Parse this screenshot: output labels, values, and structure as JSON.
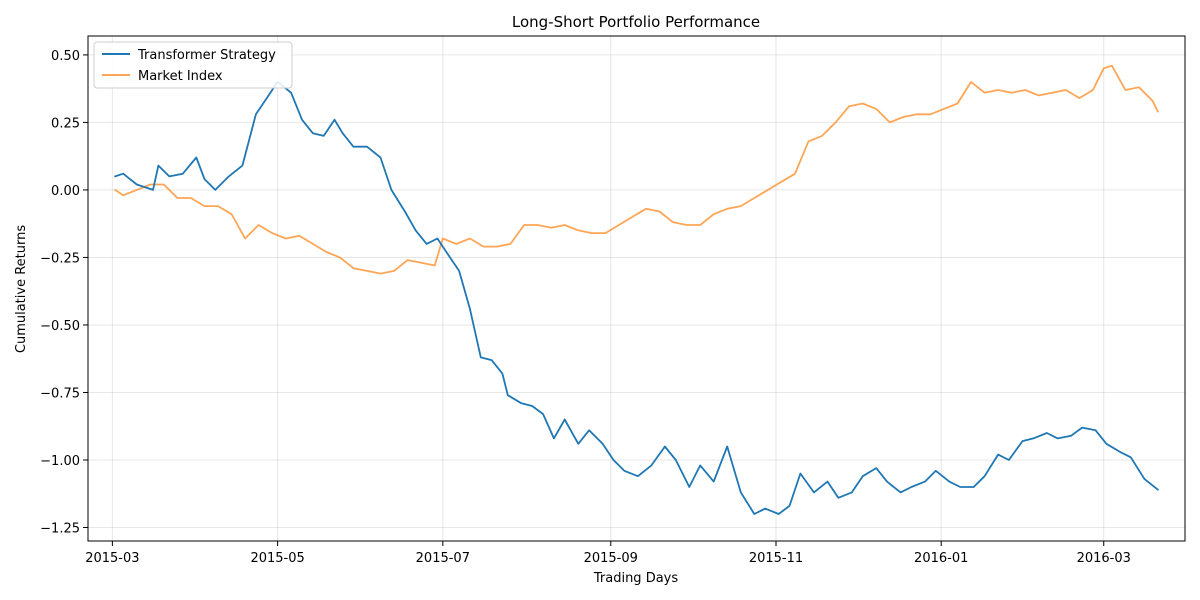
{
  "chart_data": {
    "type": "line",
    "title": "Long-Short Portfolio Performance",
    "xlabel": "Trading Days",
    "ylabel": "Cumulative Returns",
    "grid": true,
    "legend_position": "top-left",
    "x_axis": {
      "start_date": "2015-03-02",
      "end_date": "2016-03-21",
      "ticks": [
        "2015-03",
        "2015-05",
        "2015-07",
        "2015-09",
        "2015-11",
        "2016-01",
        "2016-03"
      ]
    },
    "y_axis": {
      "ylim": [
        -1.3,
        0.57
      ],
      "ticks": [
        0.5,
        0.25,
        0.0,
        -0.25,
        -0.5,
        -0.75,
        -1.0,
        -1.25
      ],
      "tick_labels": [
        "0.50",
        "0.25",
        "0.00",
        "−0.25",
        "−0.50",
        "−0.75",
        "−1.00",
        "−1.25"
      ]
    },
    "series": [
      {
        "name": "Transformer Strategy",
        "color": "#1f77b4",
        "dates": [
          "2015-03-02",
          "2015-03-05",
          "2015-03-10",
          "2015-03-16",
          "2015-03-18",
          "2015-03-22",
          "2015-03-27",
          "2015-04-01",
          "2015-04-04",
          "2015-04-08",
          "2015-04-13",
          "2015-04-18",
          "2015-04-23",
          "2015-04-27",
          "2015-05-01",
          "2015-05-06",
          "2015-05-10",
          "2015-05-14",
          "2015-05-18",
          "2015-05-22",
          "2015-05-25",
          "2015-05-29",
          "2015-06-03",
          "2015-06-08",
          "2015-06-12",
          "2015-06-17",
          "2015-06-21",
          "2015-06-25",
          "2015-06-29",
          "2015-07-03",
          "2015-07-07",
          "2015-07-11",
          "2015-07-15",
          "2015-07-19",
          "2015-07-23",
          "2015-07-25",
          "2015-07-30",
          "2015-08-03",
          "2015-08-07",
          "2015-08-11",
          "2015-08-15",
          "2015-08-20",
          "2015-08-24",
          "2015-08-29",
          "2015-09-02",
          "2015-09-06",
          "2015-09-11",
          "2015-09-16",
          "2015-09-21",
          "2015-09-25",
          "2015-09-30",
          "2015-10-04",
          "2015-10-09",
          "2015-10-14",
          "2015-10-19",
          "2015-10-24",
          "2015-10-28",
          "2015-11-02",
          "2015-11-06",
          "2015-11-10",
          "2015-11-15",
          "2015-11-20",
          "2015-11-24",
          "2015-11-29",
          "2015-12-03",
          "2015-12-08",
          "2015-12-12",
          "2015-12-17",
          "2015-12-21",
          "2015-12-26",
          "2015-12-30",
          "2016-01-04",
          "2016-01-08",
          "2016-01-13",
          "2016-01-17",
          "2016-01-22",
          "2016-01-26",
          "2016-01-31",
          "2016-02-04",
          "2016-02-09",
          "2016-02-13",
          "2016-02-18",
          "2016-02-22",
          "2016-02-27",
          "2016-03-02",
          "2016-03-07",
          "2016-03-11",
          "2016-03-16",
          "2016-03-21"
        ],
        "values": [
          0.05,
          0.06,
          0.02,
          0.0,
          0.09,
          0.05,
          0.06,
          0.12,
          0.04,
          0.0,
          0.05,
          0.09,
          0.28,
          0.34,
          0.4,
          0.36,
          0.26,
          0.21,
          0.2,
          0.26,
          0.21,
          0.16,
          0.16,
          0.12,
          0.0,
          -0.08,
          -0.15,
          -0.2,
          -0.18,
          -0.24,
          -0.3,
          -0.44,
          -0.62,
          -0.63,
          -0.68,
          -0.76,
          -0.79,
          -0.8,
          -0.83,
          -0.92,
          -0.85,
          -0.94,
          -0.89,
          -0.94,
          -1.0,
          -1.04,
          -1.06,
          -1.02,
          -0.95,
          -1.0,
          -1.1,
          -1.02,
          -1.08,
          -0.95,
          -1.12,
          -1.2,
          -1.18,
          -1.2,
          -1.17,
          -1.05,
          -1.12,
          -1.08,
          -1.14,
          -1.12,
          -1.06,
          -1.03,
          -1.08,
          -1.12,
          -1.1,
          -1.08,
          -1.04,
          -1.08,
          -1.1,
          -1.1,
          -1.06,
          -0.98,
          -1.0,
          -0.93,
          -0.92,
          -0.9,
          -0.92,
          -0.91,
          -0.88,
          -0.89,
          -0.94,
          -0.97,
          -0.99,
          -1.07,
          -1.11
        ]
      },
      {
        "name": "Market Index",
        "color": "#ff7f0e",
        "dates": [
          "2015-03-02",
          "2015-03-05",
          "2015-03-10",
          "2015-03-15",
          "2015-03-20",
          "2015-03-25",
          "2015-03-30",
          "2015-04-04",
          "2015-04-09",
          "2015-04-14",
          "2015-04-19",
          "2015-04-24",
          "2015-04-29",
          "2015-05-04",
          "2015-05-09",
          "2015-05-14",
          "2015-05-19",
          "2015-05-24",
          "2015-05-29",
          "2015-06-03",
          "2015-06-08",
          "2015-06-13",
          "2015-06-18",
          "2015-06-23",
          "2015-06-28",
          "2015-07-01",
          "2015-07-06",
          "2015-07-11",
          "2015-07-16",
          "2015-07-21",
          "2015-07-26",
          "2015-07-31",
          "2015-08-05",
          "2015-08-10",
          "2015-08-15",
          "2015-08-20",
          "2015-08-25",
          "2015-08-30",
          "2015-09-04",
          "2015-09-09",
          "2015-09-14",
          "2015-09-19",
          "2015-09-24",
          "2015-09-29",
          "2015-10-04",
          "2015-10-09",
          "2015-10-14",
          "2015-10-19",
          "2015-10-24",
          "2015-10-29",
          "2015-11-03",
          "2015-11-08",
          "2015-11-13",
          "2015-11-18",
          "2015-11-23",
          "2015-11-28",
          "2015-12-03",
          "2015-12-08",
          "2015-12-13",
          "2015-12-18",
          "2015-12-23",
          "2015-12-28",
          "2016-01-02",
          "2016-01-07",
          "2016-01-12",
          "2016-01-17",
          "2016-01-22",
          "2016-01-27",
          "2016-02-01",
          "2016-02-06",
          "2016-02-11",
          "2016-02-16",
          "2016-02-21",
          "2016-02-26",
          "2016-03-01",
          "2016-03-04",
          "2016-03-09",
          "2016-03-14",
          "2016-03-19",
          "2016-03-21"
        ],
        "values": [
          0.0,
          -0.02,
          0.0,
          0.02,
          0.02,
          -0.03,
          -0.03,
          -0.06,
          -0.06,
          -0.09,
          -0.18,
          -0.13,
          -0.16,
          -0.18,
          -0.17,
          -0.2,
          -0.23,
          -0.25,
          -0.29,
          -0.3,
          -0.31,
          -0.3,
          -0.26,
          -0.27,
          -0.28,
          -0.18,
          -0.2,
          -0.18,
          -0.21,
          -0.21,
          -0.2,
          -0.13,
          -0.13,
          -0.14,
          -0.13,
          -0.15,
          -0.16,
          -0.16,
          -0.13,
          -0.1,
          -0.07,
          -0.08,
          -0.12,
          -0.13,
          -0.13,
          -0.09,
          -0.07,
          -0.06,
          -0.03,
          0.0,
          0.03,
          0.06,
          0.18,
          0.2,
          0.25,
          0.31,
          0.32,
          0.3,
          0.25,
          0.27,
          0.28,
          0.28,
          0.3,
          0.32,
          0.4,
          0.36,
          0.37,
          0.36,
          0.37,
          0.35,
          0.36,
          0.37,
          0.34,
          0.37,
          0.45,
          0.46,
          0.37,
          0.38,
          0.33,
          0.29
        ]
      }
    ]
  }
}
